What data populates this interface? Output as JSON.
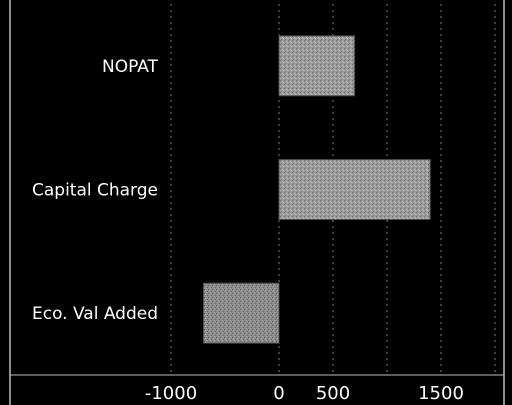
{
  "chart_data": {
    "type": "bar",
    "orientation": "horizontal",
    "categories": [
      "NOPAT",
      "Capital Charge",
      "Eco. Val Added"
    ],
    "values": [
      700,
      1400,
      -700
    ],
    "title": "",
    "xlabel": "",
    "ylabel": "",
    "xlim": [
      -1000,
      2000
    ],
    "xticks": [
      -1000,
      0,
      500,
      1500
    ],
    "xtick_labels": [
      "-1000",
      "0",
      "500",
      "1500"
    ],
    "grid": true,
    "colors": {
      "background": "#000000",
      "plot_background": "#000000",
      "bar_fill": "#9b9b9b",
      "bar_fill_negative": "#8a8a8a",
      "gridline": "#7a7a7a",
      "axis_line": "#bdbdbd",
      "text": "#ffffff"
    }
  }
}
